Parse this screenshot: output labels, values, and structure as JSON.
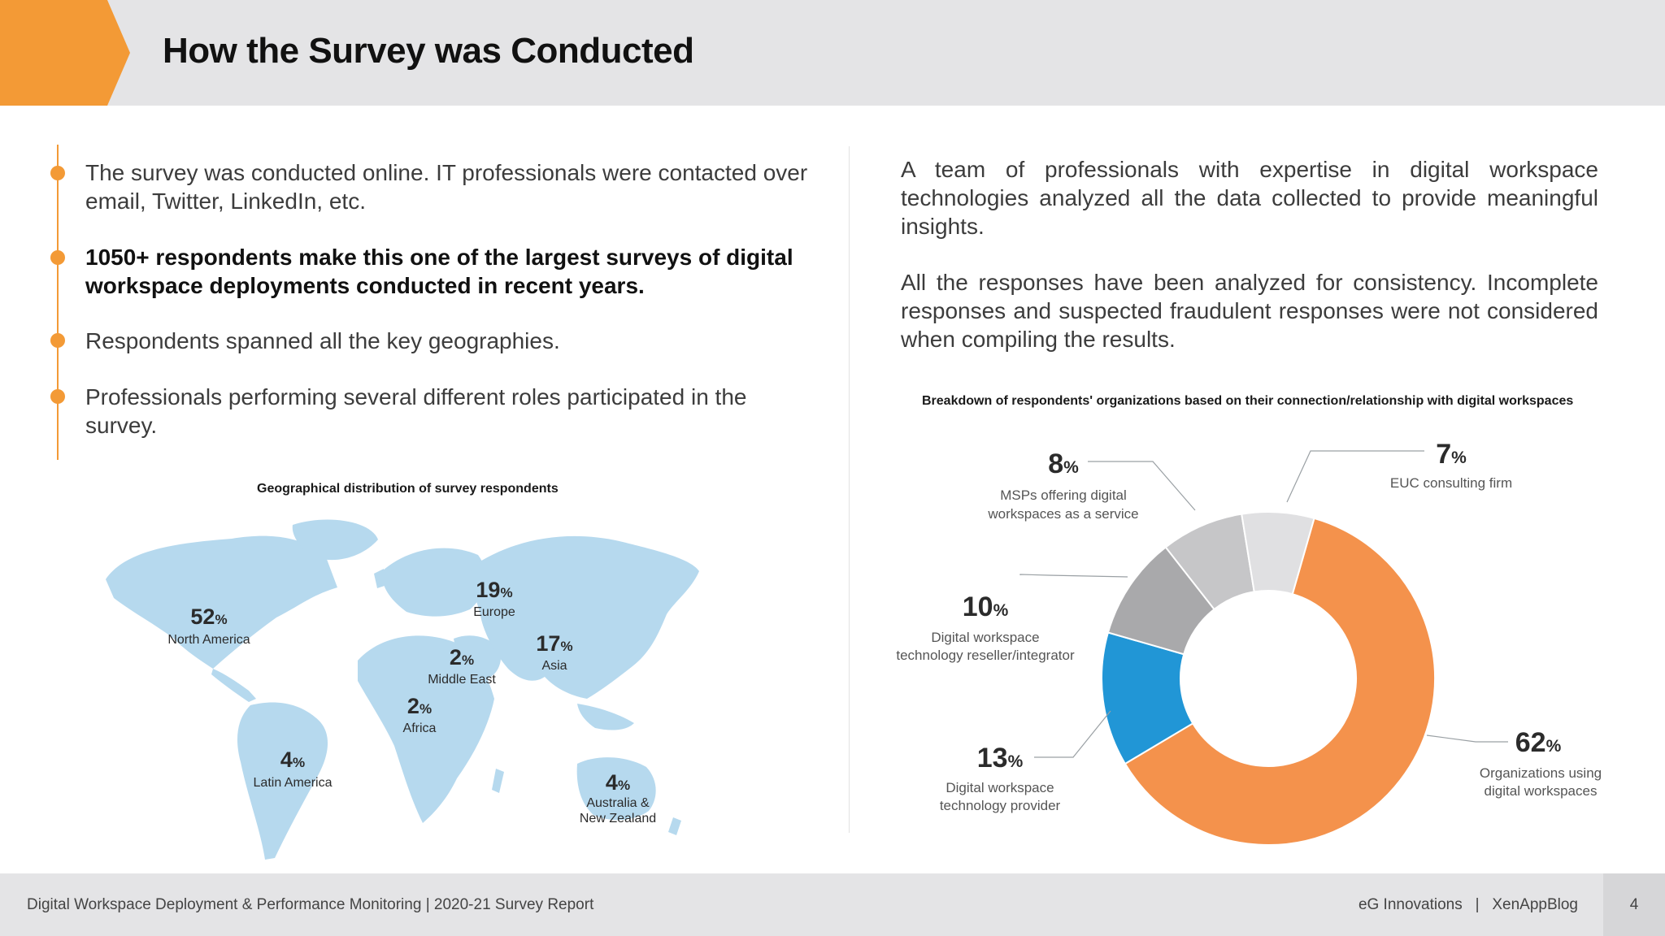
{
  "header": {
    "title": "How the Survey was Conducted"
  },
  "bullets": [
    {
      "text": "The survey was conducted online. IT professionals were contacted over email, Twitter, LinkedIn, etc.",
      "bold": false
    },
    {
      "text": "1050+ respondents make this one of the largest surveys of digital workspace deployments conducted in recent years.",
      "bold": true
    },
    {
      "text": "Respondents spanned all the key geographies.",
      "bold": false
    },
    {
      "text": "Professionals performing several different roles participated in the survey.",
      "bold": false
    }
  ],
  "paragraphs": [
    "A team of professionals with expertise in digital workspace technologies analyzed all the data collected to provide meaningful insights.",
    "All the responses have been analyzed for consistency. Incomplete responses and suspected fraudulent responses were not considered when compiling the results."
  ],
  "colors": {
    "accent": "#f39a36",
    "header_bg": "#e4e4e6",
    "map": "#b6d9ee",
    "donut_orange": "#f4924c",
    "donut_blue": "#2196d6"
  },
  "chart_data": [
    {
      "type": "map",
      "title": "Geographical distribution of survey respondents",
      "unit": "%",
      "regions": [
        {
          "name": "North America",
          "value": 52
        },
        {
          "name": "Europe",
          "value": 19
        },
        {
          "name": "Asia",
          "value": 17
        },
        {
          "name": "Middle East",
          "value": 2
        },
        {
          "name": "Africa",
          "value": 2
        },
        {
          "name": "Latin America",
          "value": 4
        },
        {
          "name": "Australia & New Zealand",
          "value": 4
        }
      ]
    },
    {
      "type": "pie",
      "title": "Breakdown of respondents' organizations based on their connection/relationship with digital workspaces",
      "unit": "%",
      "slices": [
        {
          "name": "Organizations using digital workspaces",
          "value": 62,
          "color": "#f4924c"
        },
        {
          "name": "Digital workspace technology provider",
          "value": 13,
          "color": "#2196d6"
        },
        {
          "name": "Digital workspace technology reseller/integrator",
          "value": 10,
          "color": "#a9a9ab"
        },
        {
          "name": "MSPs offering digital workspaces as a service",
          "value": 8,
          "color": "#c6c6c8"
        },
        {
          "name": "EUC consulting firm",
          "value": 7,
          "color": "#e0e0e2"
        }
      ]
    }
  ],
  "footer": {
    "left": "Digital Workspace Deployment & Performance Monitoring | 2020-21 Survey Report",
    "right": "eG Innovations   |   XenAppBlog",
    "page": "4"
  }
}
